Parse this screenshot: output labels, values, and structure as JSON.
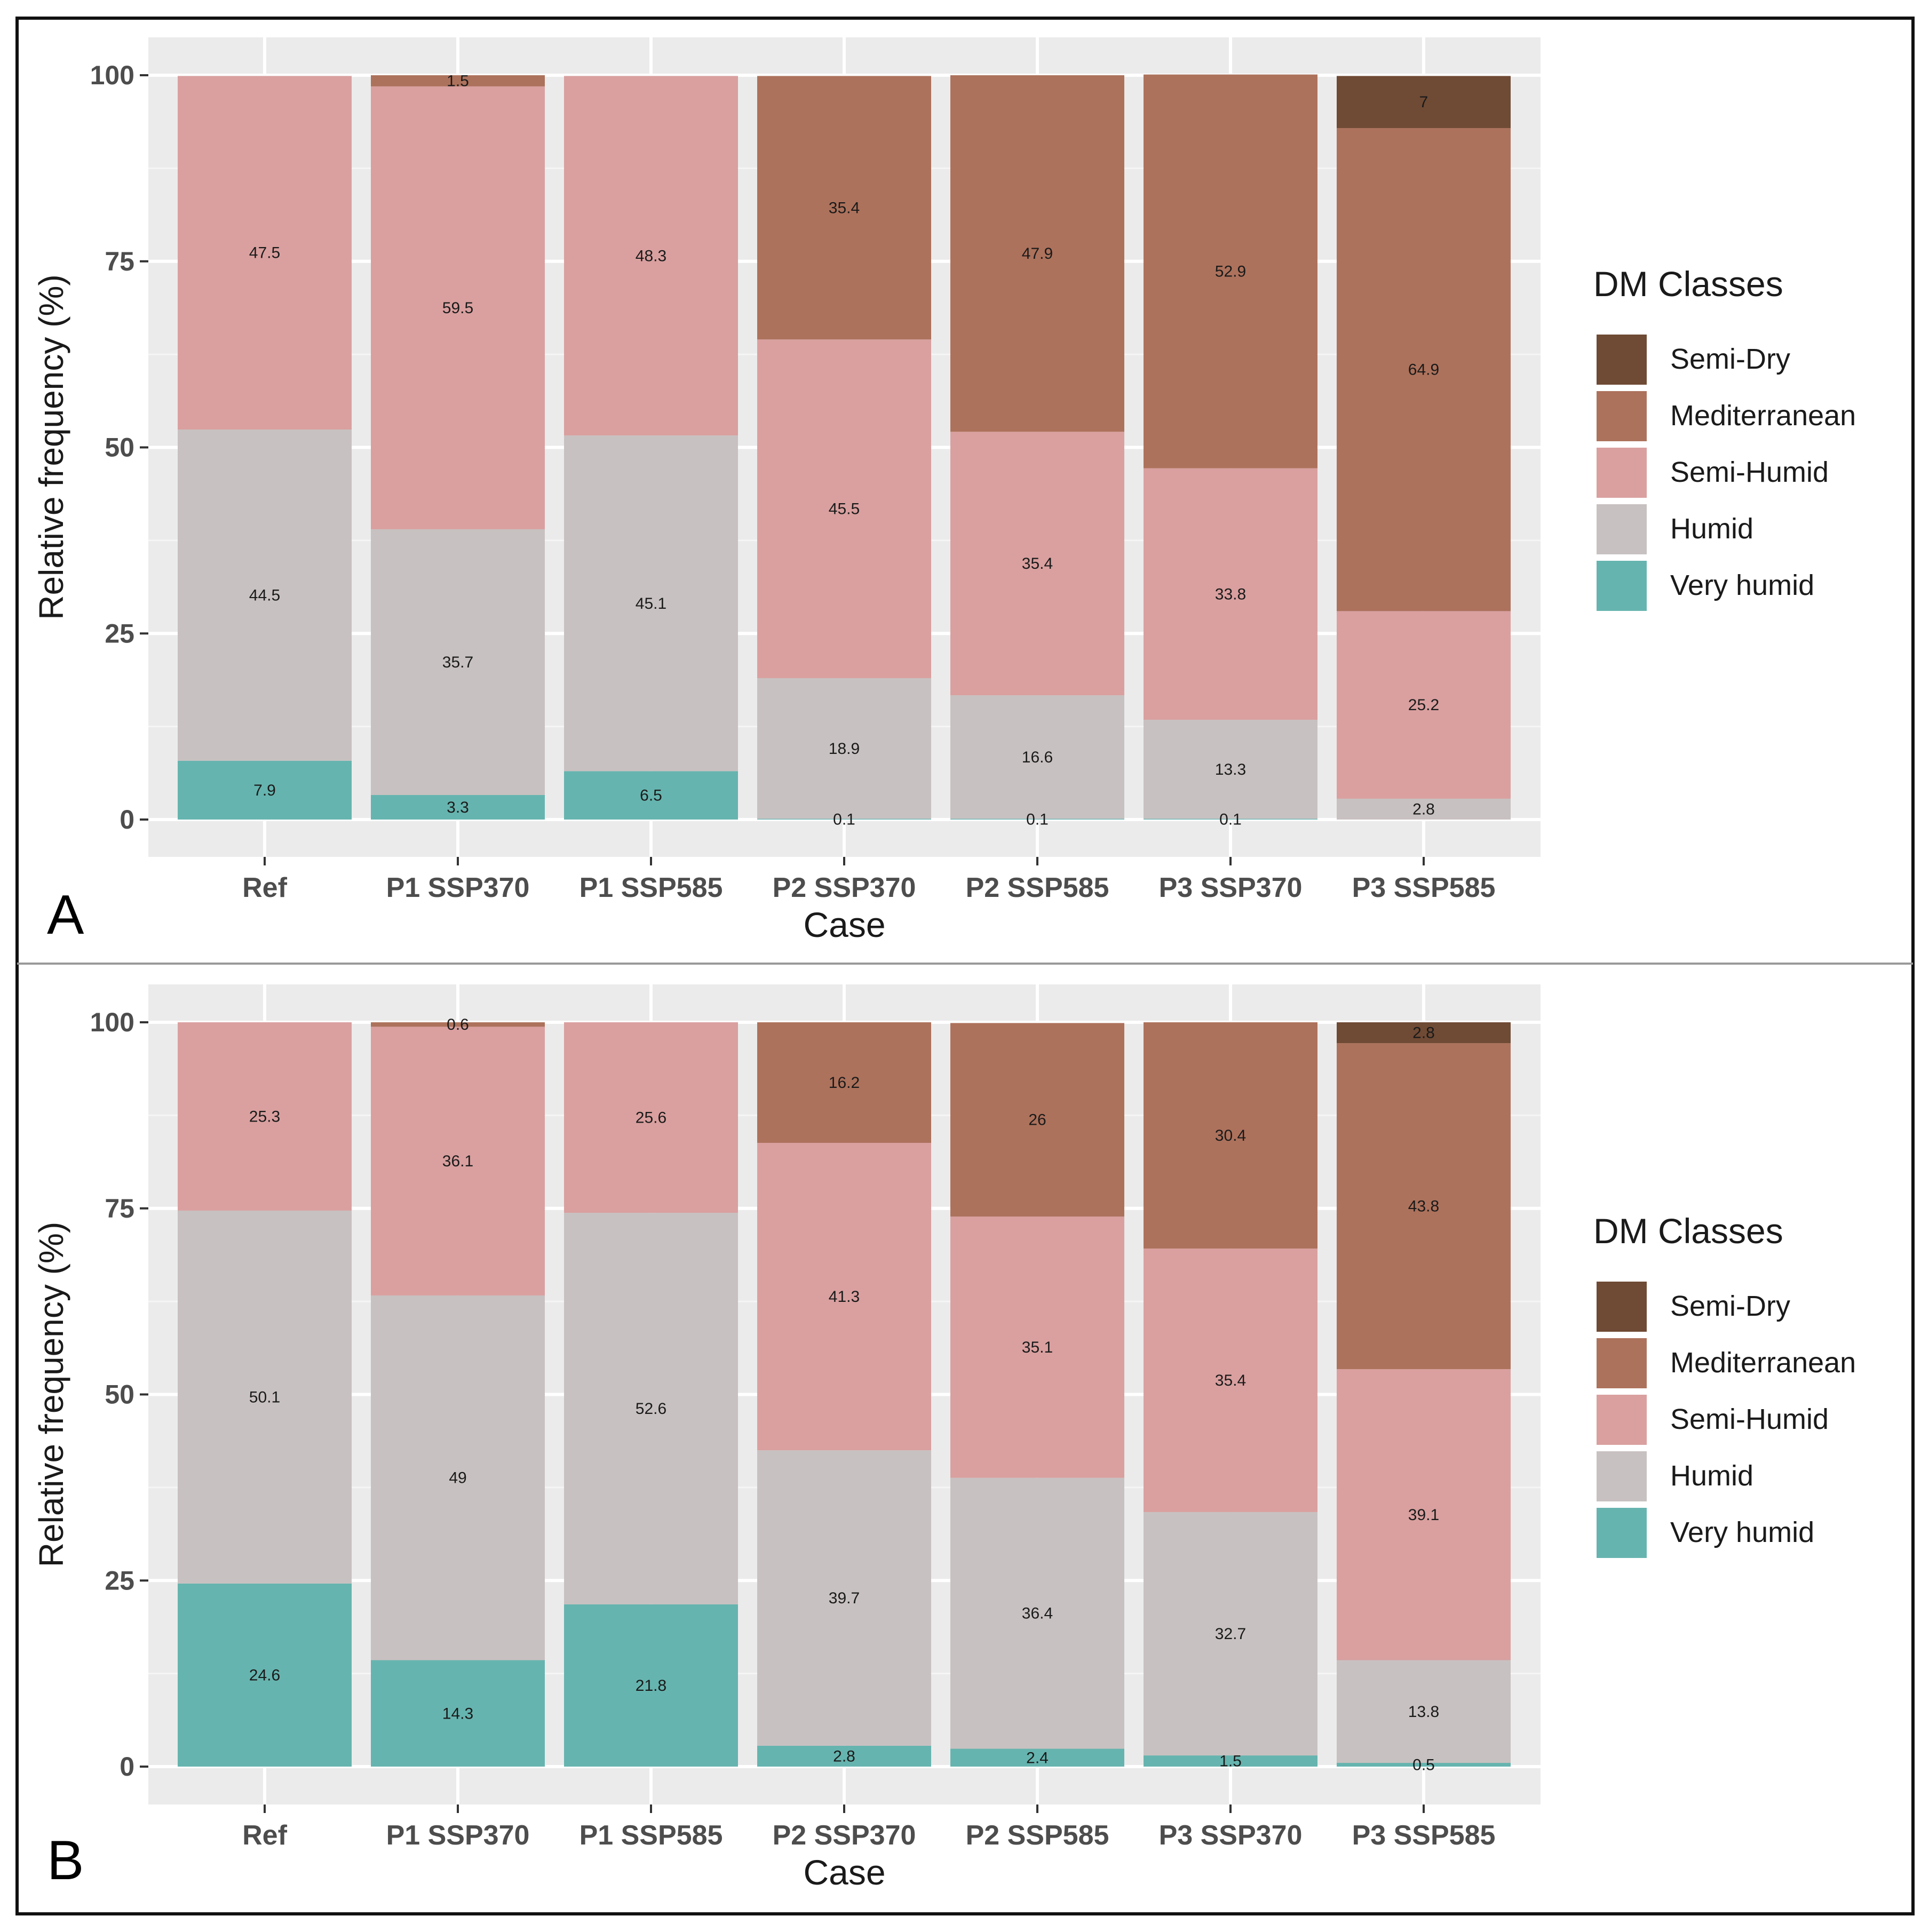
{
  "colors": {
    "background": "#ffffff",
    "panel": "#ebebeb",
    "grid_major": "#ffffff",
    "grid_minor": "#f5f5f5",
    "axis_text": "#4d4d4d",
    "title_text": "#1a1a1a",
    "label_text": "#1a1a1a",
    "border": "#111111",
    "divider": "#9a9a9a"
  },
  "legend": {
    "title": "DM Classes",
    "items": [
      {
        "key": "semi_dry",
        "label": "Semi-Dry",
        "color": "#6f4a34"
      },
      {
        "key": "mediterranean",
        "label": "Mediterranean",
        "color": "#ad725c"
      },
      {
        "key": "semi_humid",
        "label": "Semi-Humid",
        "color": "#d9a09f"
      },
      {
        "key": "humid",
        "label": "Humid",
        "color": "#c8c1c1"
      },
      {
        "key": "very_humid",
        "label": "Very humid",
        "color": "#66b4af"
      }
    ]
  },
  "chart_data": [
    {
      "panel_label": "A",
      "type": "bar",
      "stacked": true,
      "xlabel": "Case",
      "ylabel": "Relative frequency (%)",
      "ylim": [
        0,
        100
      ],
      "yticks": [
        0,
        25,
        50,
        75,
        100
      ],
      "categories": [
        "Ref",
        "P1 SSP370",
        "P1 SSP585",
        "P2 SSP370",
        "P2 SSP585",
        "P3 SSP370",
        "P3 SSP585"
      ],
      "series": [
        {
          "name": "Very humid",
          "key": "very_humid",
          "values": [
            7.9,
            3.3,
            6.5,
            0.1,
            0.1,
            0.1,
            0
          ],
          "labels": [
            "7.9",
            "3.3",
            "6.5",
            "0.1",
            "0.1",
            "0.1",
            ""
          ]
        },
        {
          "name": "Humid",
          "key": "humid",
          "values": [
            44.5,
            35.7,
            45.1,
            18.9,
            16.6,
            13.3,
            2.8
          ],
          "labels": [
            "44.5",
            "35.7",
            "45.1",
            "18.9",
            "16.6",
            "13.3",
            "2.8"
          ]
        },
        {
          "name": "Semi-Humid",
          "key": "semi_humid",
          "values": [
            47.5,
            59.5,
            48.3,
            45.5,
            35.4,
            33.8,
            25.2
          ],
          "labels": [
            "47.5",
            "59.5",
            "48.3",
            "45.5",
            "35.4",
            "33.8",
            "25.2"
          ]
        },
        {
          "name": "Mediterranean",
          "key": "mediterranean",
          "values": [
            0,
            1.5,
            0,
            35.4,
            47.9,
            52.9,
            64.9
          ],
          "labels": [
            "",
            "1.5",
            "",
            "35.4",
            "47.9",
            "52.9",
            "64.9"
          ]
        },
        {
          "name": "Semi-Dry",
          "key": "semi_dry",
          "values": [
            0,
            0,
            0,
            0,
            0,
            0,
            7
          ],
          "labels": [
            "",
            "",
            "",
            "",
            "",
            "",
            "7"
          ]
        }
      ]
    },
    {
      "panel_label": "B",
      "type": "bar",
      "stacked": true,
      "xlabel": "Case",
      "ylabel": "Relative frequency (%)",
      "ylim": [
        0,
        100
      ],
      "yticks": [
        0,
        25,
        50,
        75,
        100
      ],
      "categories": [
        "Ref",
        "P1 SSP370",
        "P1 SSP585",
        "P2 SSP370",
        "P2 SSP585",
        "P3 SSP370",
        "P3 SSP585"
      ],
      "series": [
        {
          "name": "Very humid",
          "key": "very_humid",
          "values": [
            24.6,
            14.3,
            21.8,
            2.8,
            2.4,
            1.5,
            0.5
          ],
          "labels": [
            "24.6",
            "14.3",
            "21.8",
            "2.8",
            "2.4",
            "1.5",
            "0.5"
          ]
        },
        {
          "name": "Humid",
          "key": "humid",
          "values": [
            50.1,
            49,
            52.6,
            39.7,
            36.4,
            32.7,
            13.8
          ],
          "labels": [
            "50.1",
            "49",
            "52.6",
            "39.7",
            "36.4",
            "32.7",
            "13.8"
          ]
        },
        {
          "name": "Semi-Humid",
          "key": "semi_humid",
          "values": [
            25.3,
            36.1,
            25.6,
            41.3,
            35.1,
            35.4,
            39.1
          ],
          "labels": [
            "25.3",
            "36.1",
            "25.6",
            "41.3",
            "35.1",
            "35.4",
            "39.1"
          ]
        },
        {
          "name": "Mediterranean",
          "key": "mediterranean",
          "values": [
            0,
            0.6,
            0,
            16.2,
            26,
            30.4,
            43.8
          ],
          "labels": [
            "",
            "0.6",
            "",
            "16.2",
            "26",
            "30.4",
            "43.8"
          ]
        },
        {
          "name": "Semi-Dry",
          "key": "semi_dry",
          "values": [
            0,
            0,
            0,
            0,
            0,
            0,
            2.8
          ],
          "labels": [
            "",
            "",
            "",
            "",
            "",
            "",
            "2.8"
          ]
        }
      ]
    }
  ]
}
